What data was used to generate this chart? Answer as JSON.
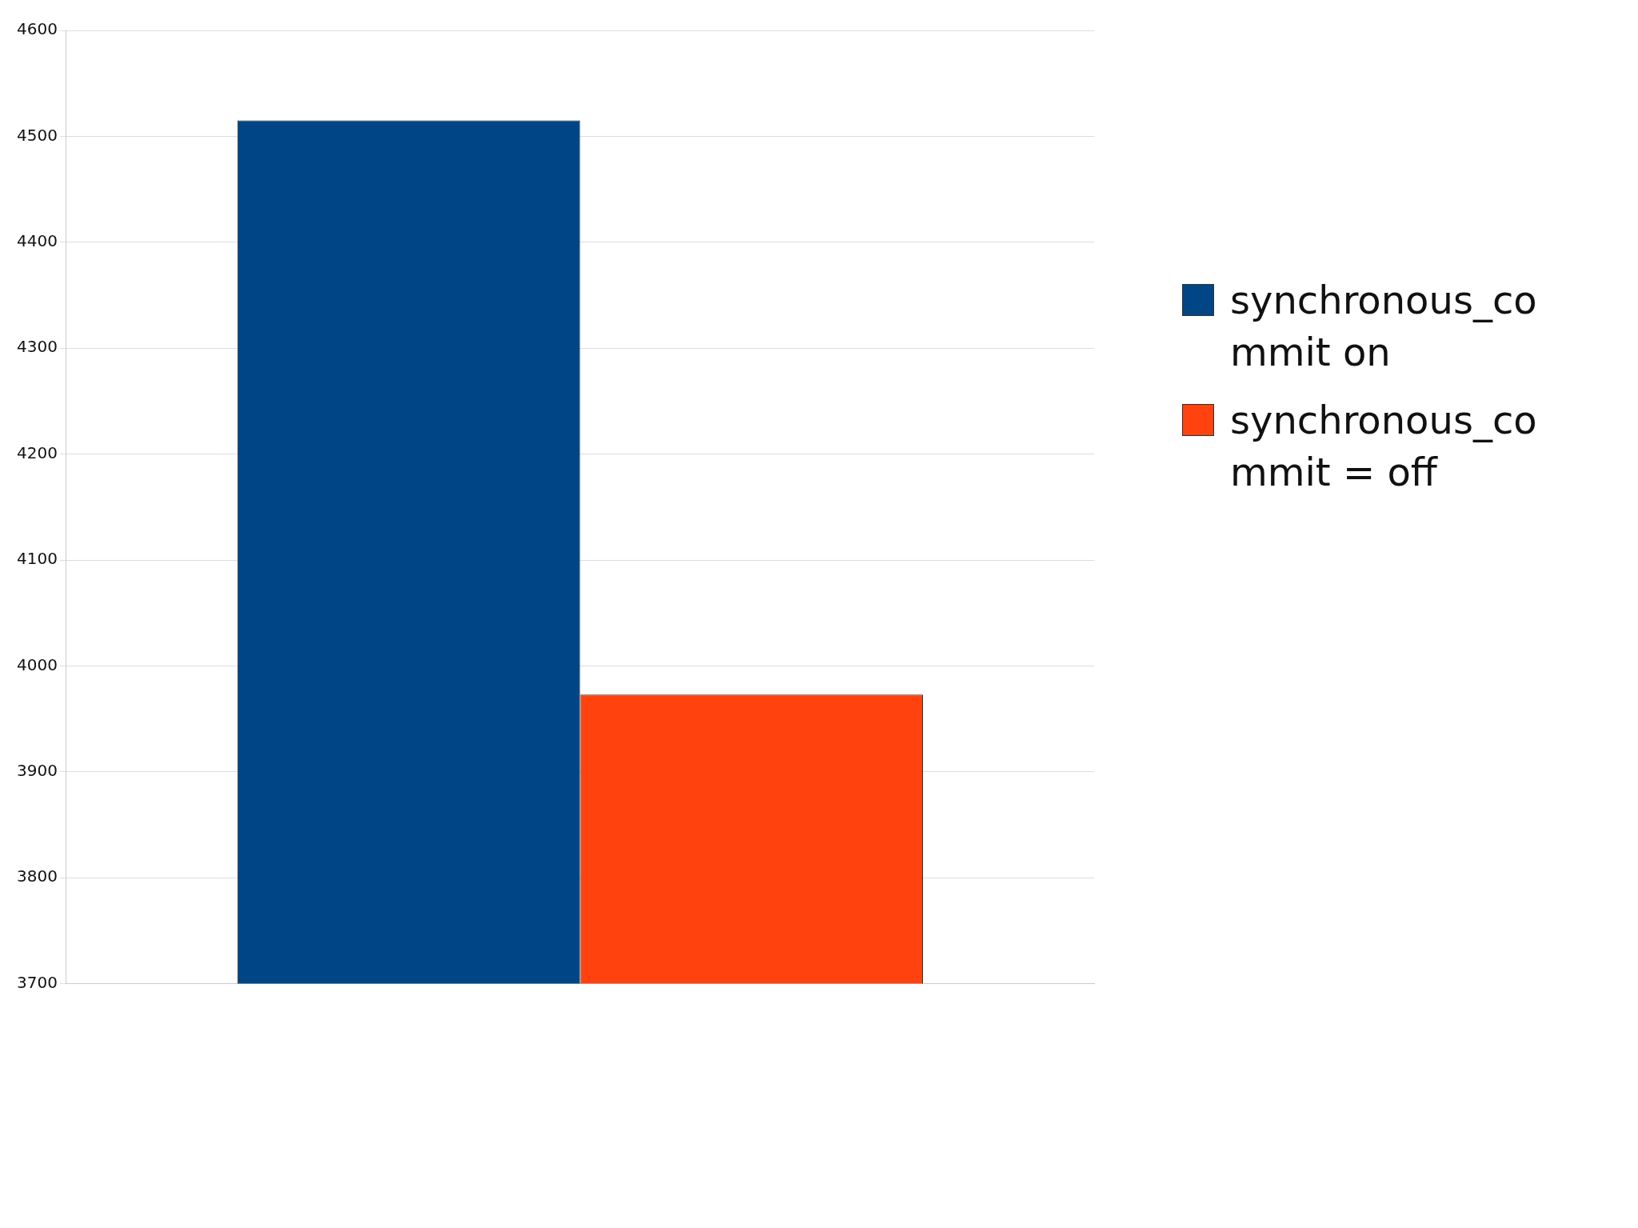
{
  "chart_data": {
    "type": "bar",
    "categories": [
      null
    ],
    "series": [
      {
        "name": "synchronous_commit on",
        "color": "#004586",
        "values": [
          4515
        ]
      },
      {
        "name": "synchronous_commit = off",
        "color": "#ff420e",
        "values": [
          3973
        ]
      }
    ],
    "ylim": [
      3700,
      4600
    ],
    "yticks": [
      3700,
      3800,
      3900,
      4000,
      4100,
      4200,
      4300,
      4400,
      4500,
      4600
    ],
    "grid": "y",
    "legend": "right"
  }
}
